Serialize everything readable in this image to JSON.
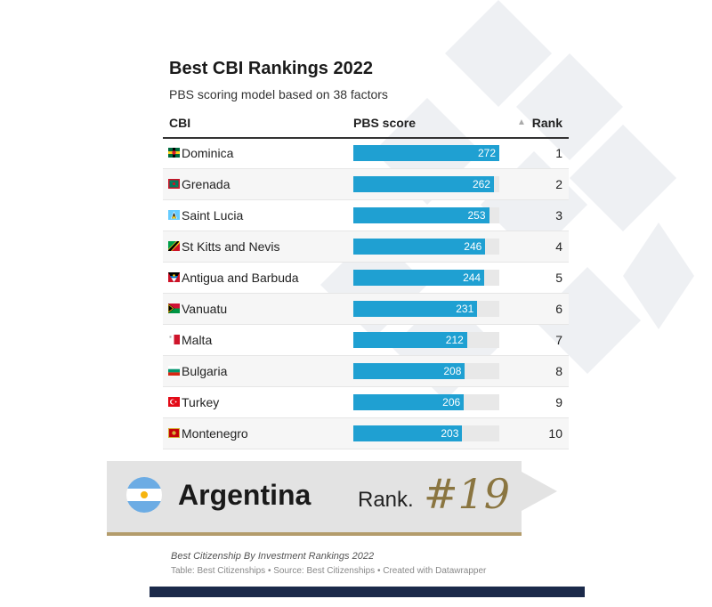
{
  "title": "Best CBI Rankings 2022",
  "subtitle": "PBS scoring model based on 38 factors",
  "columns": {
    "cbi": "CBI",
    "score": "PBS score",
    "sort_icon": "▲",
    "rank": "Rank"
  },
  "chart_data": {
    "type": "bar",
    "title": "Best CBI Rankings 2022",
    "subtitle": "PBS scoring model based on 38 factors",
    "categories": [
      "Dominica",
      "Grenada",
      "Saint Lucia",
      "St Kitts and Nevis",
      "Antigua and Barbuda",
      "Vanuatu",
      "Malta",
      "Bulgaria",
      "Turkey",
      "Montenegro"
    ],
    "values": [
      272,
      262,
      253,
      246,
      244,
      231,
      212,
      208,
      206,
      203
    ],
    "ranks": [
      1,
      2,
      3,
      4,
      5,
      6,
      7,
      8,
      9,
      10
    ],
    "xlim": [
      0,
      272
    ],
    "xlabel": "PBS score",
    "ylabel": "",
    "bar_color": "#1fa0d2"
  },
  "rows": [
    {
      "name": "Dominica",
      "score": "272",
      "rank": "1",
      "flag": "dominica-flag"
    },
    {
      "name": "Grenada",
      "score": "262",
      "rank": "2",
      "flag": "grenada-flag"
    },
    {
      "name": "Saint Lucia",
      "score": "253",
      "rank": "3",
      "flag": "saint-lucia-flag"
    },
    {
      "name": "St Kitts and Nevis",
      "score": "246",
      "rank": "4",
      "flag": "st-kitts-flag"
    },
    {
      "name": "Antigua and Barbuda",
      "score": "244",
      "rank": "5",
      "flag": "antigua-flag"
    },
    {
      "name": "Vanuatu",
      "score": "231",
      "rank": "6",
      "flag": "vanuatu-flag"
    },
    {
      "name": "Malta",
      "score": "212",
      "rank": "7",
      "flag": "malta-flag"
    },
    {
      "name": "Bulgaria",
      "score": "208",
      "rank": "8",
      "flag": "bulgaria-flag"
    },
    {
      "name": "Turkey",
      "score": "206",
      "rank": "9",
      "flag": "turkey-flag"
    },
    {
      "name": "Montenegro",
      "score": "203",
      "rank": "10",
      "flag": "montenegro-flag"
    }
  ],
  "highlight": {
    "country": "Argentina",
    "rank_label": "Rank.",
    "rank_value": "#19",
    "flag": "argentina-flag",
    "accent": "#b39c6b"
  },
  "footer": {
    "title": "Best Citizenship By Investment Rankings 2022",
    "source": "Table: Best Citizenships • Source: Best Citizenships • Created with Datawrapper"
  }
}
